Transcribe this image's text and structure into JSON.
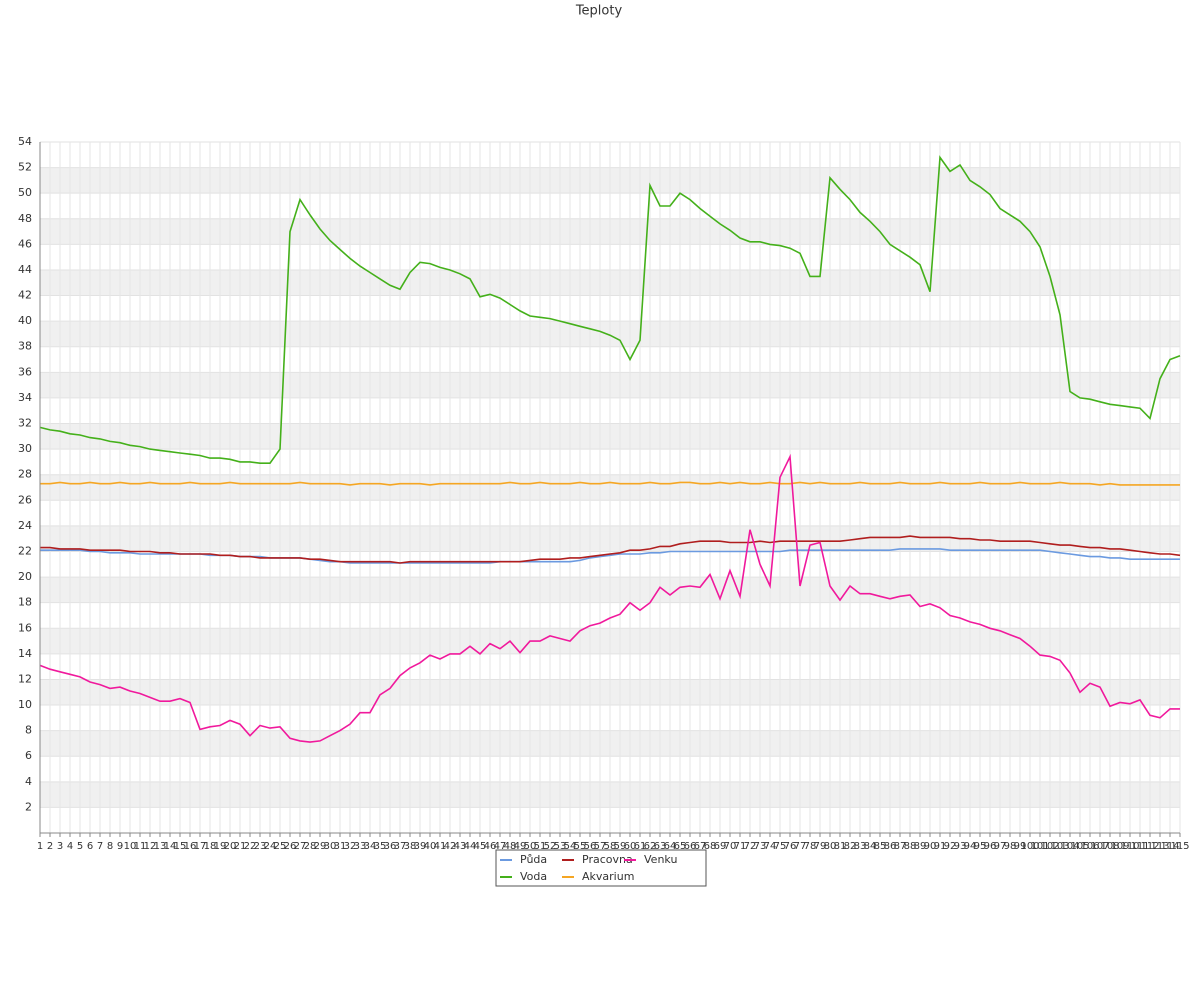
{
  "chart_data": {
    "type": "line",
    "title": "Teploty",
    "categories": [
      1,
      2,
      3,
      4,
      5,
      6,
      7,
      8,
      9,
      10,
      11,
      12,
      13,
      14,
      15,
      16,
      17,
      18,
      19,
      20,
      21,
      22,
      23,
      24,
      25,
      26,
      27,
      28,
      29,
      30,
      31,
      32,
      33,
      34,
      35,
      36,
      37,
      38,
      39,
      40,
      41,
      42,
      43,
      44,
      45,
      46,
      47,
      48,
      49,
      50,
      51,
      52,
      53,
      54,
      55,
      56,
      57,
      58,
      59,
      60,
      61,
      62,
      63,
      64,
      65,
      66,
      67,
      68,
      69,
      70,
      71,
      72,
      73,
      74,
      75,
      76,
      77,
      78,
      79,
      80,
      81,
      82,
      83,
      84,
      85,
      86,
      87,
      88,
      89,
      90,
      91,
      92,
      93,
      94,
      95,
      96,
      97,
      98,
      99,
      100,
      101,
      102,
      103,
      104,
      105,
      106,
      107,
      108,
      109,
      110,
      111,
      112,
      113,
      114,
      115
    ],
    "ylim": [
      0,
      54
    ],
    "yticks": [
      2,
      4,
      6,
      8,
      10,
      12,
      14,
      16,
      18,
      20,
      22,
      24,
      26,
      28,
      30,
      32,
      34,
      36,
      38,
      40,
      42,
      44,
      46,
      48,
      50,
      52,
      54
    ],
    "grid": true,
    "series": [
      {
        "name": "Půda",
        "color": "#6b9ae0",
        "values": [
          22.1,
          22.1,
          22.1,
          22.1,
          22.1,
          22.0,
          22.0,
          21.9,
          21.9,
          21.9,
          21.8,
          21.8,
          21.8,
          21.8,
          21.8,
          21.8,
          21.8,
          21.7,
          21.7,
          21.7,
          21.6,
          21.6,
          21.6,
          21.5,
          21.5,
          21.5,
          21.5,
          21.4,
          21.3,
          21.2,
          21.2,
          21.1,
          21.1,
          21.1,
          21.1,
          21.1,
          21.1,
          21.1,
          21.1,
          21.1,
          21.1,
          21.1,
          21.1,
          21.1,
          21.1,
          21.1,
          21.2,
          21.2,
          21.2,
          21.2,
          21.2,
          21.2,
          21.2,
          21.2,
          21.3,
          21.5,
          21.6,
          21.7,
          21.8,
          21.8,
          21.8,
          21.9,
          21.9,
          22.0,
          22.0,
          22.0,
          22.0,
          22.0,
          22.0,
          22.0,
          22.0,
          22.0,
          22.0,
          22.0,
          22.0,
          22.1,
          22.1,
          22.1,
          22.1,
          22.1,
          22.1,
          22.1,
          22.1,
          22.1,
          22.1,
          22.1,
          22.2,
          22.2,
          22.2,
          22.2,
          22.2,
          22.1,
          22.1,
          22.1,
          22.1,
          22.1,
          22.1,
          22.1,
          22.1,
          22.1,
          22.1,
          22.0,
          21.9,
          21.8,
          21.7,
          21.6,
          21.6,
          21.5,
          21.5,
          21.4,
          21.4,
          21.4,
          21.4,
          21.4,
          21.4
        ]
      },
      {
        "name": "Voda",
        "color": "#44b01a",
        "values": [
          31.7,
          31.5,
          31.4,
          31.2,
          31.1,
          30.9,
          30.8,
          30.6,
          30.5,
          30.3,
          30.2,
          30.0,
          29.9,
          29.8,
          29.7,
          29.6,
          29.5,
          29.3,
          29.3,
          29.2,
          29.0,
          29.0,
          28.9,
          28.9,
          30.0,
          47,
          49.5,
          48.3,
          47.2,
          46.3,
          45.6,
          44.9,
          44.3,
          43.8,
          43.3,
          42.8,
          42.5,
          43.8,
          44.6,
          44.5,
          44.2,
          44.0,
          43.7,
          43.3,
          41.9,
          42.1,
          41.8,
          41.3,
          40.8,
          40.4,
          40.3,
          40.2,
          40.0,
          39.8,
          39.6,
          39.4,
          39.2,
          38.9,
          38.5,
          37.0,
          38.5,
          50.6,
          49.0,
          49.0,
          50.0,
          49.5,
          48.8,
          48.2,
          47.6,
          47.1,
          46.5,
          46.2,
          46.2,
          46.0,
          45.9,
          45.7,
          45.3,
          43.5,
          43.5,
          51.2,
          50.3,
          49.5,
          48.5,
          47.8,
          47.0,
          46.0,
          45.5,
          45.0,
          44.4,
          42.3,
          52.8,
          51.7,
          52.2,
          51.0,
          50.5,
          49.9,
          48.8,
          48.3,
          47.8,
          47.0,
          45.8,
          43.5,
          40.5,
          34.5,
          34.0,
          33.9,
          33.7,
          33.5,
          33.4,
          33.3,
          33.2,
          32.4,
          35.5,
          37.0,
          37.3
        ]
      },
      {
        "name": "Pracovna",
        "color": "#b01e1e",
        "values": [
          22.3,
          22.3,
          22.2,
          22.2,
          22.2,
          22.1,
          22.1,
          22.1,
          22.1,
          22.0,
          22.0,
          22.0,
          21.9,
          21.9,
          21.8,
          21.8,
          21.8,
          21.8,
          21.7,
          21.7,
          21.6,
          21.6,
          21.5,
          21.5,
          21.5,
          21.5,
          21.5,
          21.4,
          21.4,
          21.3,
          21.2,
          21.2,
          21.2,
          21.2,
          21.2,
          21.2,
          21.1,
          21.2,
          21.2,
          21.2,
          21.2,
          21.2,
          21.2,
          21.2,
          21.2,
          21.2,
          21.2,
          21.2,
          21.2,
          21.3,
          21.4,
          21.4,
          21.4,
          21.5,
          21.5,
          21.6,
          21.7,
          21.8,
          21.9,
          22.1,
          22.1,
          22.2,
          22.4,
          22.4,
          22.6,
          22.7,
          22.8,
          22.8,
          22.8,
          22.7,
          22.7,
          22.7,
          22.8,
          22.7,
          22.8,
          22.8,
          22.8,
          22.8,
          22.8,
          22.8,
          22.8,
          22.9,
          23.0,
          23.1,
          23.1,
          23.1,
          23.1,
          23.2,
          23.1,
          23.1,
          23.1,
          23.1,
          23.0,
          23.0,
          22.9,
          22.9,
          22.8,
          22.8,
          22.8,
          22.8,
          22.7,
          22.6,
          22.5,
          22.5,
          22.4,
          22.3,
          22.3,
          22.2,
          22.2,
          22.1,
          22.0,
          21.9,
          21.8,
          21.8,
          21.7
        ]
      },
      {
        "name": "Akvarium",
        "color": "#f5a623",
        "values": [
          27.3,
          27.3,
          27.4,
          27.3,
          27.3,
          27.4,
          27.3,
          27.3,
          27.4,
          27.3,
          27.3,
          27.4,
          27.3,
          27.3,
          27.3,
          27.4,
          27.3,
          27.3,
          27.3,
          27.4,
          27.3,
          27.3,
          27.3,
          27.3,
          27.3,
          27.3,
          27.4,
          27.3,
          27.3,
          27.3,
          27.3,
          27.2,
          27.3,
          27.3,
          27.3,
          27.2,
          27.3,
          27.3,
          27.3,
          27.2,
          27.3,
          27.3,
          27.3,
          27.3,
          27.3,
          27.3,
          27.3,
          27.4,
          27.3,
          27.3,
          27.4,
          27.3,
          27.3,
          27.3,
          27.4,
          27.3,
          27.3,
          27.4,
          27.3,
          27.3,
          27.3,
          27.4,
          27.3,
          27.3,
          27.4,
          27.4,
          27.3,
          27.3,
          27.4,
          27.3,
          27.4,
          27.3,
          27.3,
          27.4,
          27.3,
          27.3,
          27.4,
          27.3,
          27.4,
          27.3,
          27.3,
          27.3,
          27.4,
          27.3,
          27.3,
          27.3,
          27.4,
          27.3,
          27.3,
          27.3,
          27.4,
          27.3,
          27.3,
          27.3,
          27.4,
          27.3,
          27.3,
          27.3,
          27.4,
          27.3,
          27.3,
          27.3,
          27.4,
          27.3,
          27.3,
          27.3,
          27.2,
          27.3,
          27.2,
          27.2,
          27.2,
          27.2,
          27.2,
          27.2,
          27.2
        ]
      },
      {
        "name": "Venku",
        "color": "#f0199c",
        "values": [
          13.1,
          12.8,
          12.6,
          12.4,
          12.2,
          11.8,
          11.6,
          11.3,
          11.4,
          11.1,
          10.9,
          10.6,
          10.3,
          10.3,
          10.5,
          10.2,
          8.1,
          8.3,
          8.4,
          8.8,
          8.5,
          7.6,
          8.4,
          8.2,
          8.3,
          7.4,
          7.2,
          7.1,
          7.2,
          7.6,
          8.0,
          8.5,
          9.4,
          9.4,
          10.8,
          11.3,
          12.3,
          12.9,
          13.3,
          13.9,
          13.6,
          14.0,
          14.0,
          14.6,
          14.0,
          14.8,
          14.4,
          15.0,
          14.1,
          15.0,
          15.0,
          15.4,
          15.2,
          15.0,
          15.8,
          16.2,
          16.4,
          16.8,
          17.1,
          18.0,
          17.4,
          18.0,
          19.2,
          18.6,
          19.2,
          19.3,
          19.2,
          20.2,
          18.3,
          20.5,
          18.5,
          23.7,
          21.0,
          19.3,
          27.8,
          29.4,
          19.3,
          22.5,
          22.7,
          19.3,
          18.2,
          19.3,
          18.7,
          18.7,
          18.5,
          18.3,
          18.5,
          18.6,
          17.7,
          17.9,
          17.6,
          17.0,
          16.8,
          16.5,
          16.3,
          16.0,
          15.8,
          15.5,
          15.2,
          14.6,
          13.9,
          13.8,
          13.5,
          12.5,
          11.0,
          11.7,
          11.4,
          9.9,
          10.2,
          10.1,
          10.4,
          9.2,
          9.0,
          9.7,
          9.7
        ]
      }
    ]
  }
}
